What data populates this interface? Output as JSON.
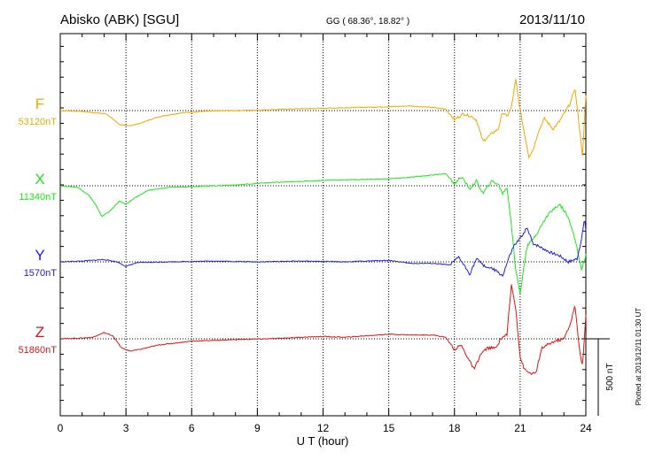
{
  "header": {
    "station": "Abisko (ABK)  [SGU]",
    "coords": "GG ( 68.36°,  18.82° )",
    "date": "2013/11/10"
  },
  "plotted_note": "Plotted at 2013/12/11 01:30 UT",
  "chart_data": {
    "type": "line",
    "title": "Abisko (ABK)  [SGU]",
    "xlabel": "U T (hour)",
    "ylabel": "",
    "xlim": [
      0,
      24
    ],
    "x_ticks": [
      0,
      3,
      6,
      9,
      12,
      15,
      18,
      21,
      24
    ],
    "x_tick_labels": [
      "0",
      "3",
      "6",
      "9",
      "12",
      "15",
      "18",
      "21",
      "24"
    ],
    "scale_bar_nT": 500,
    "scale_label": "500 nT",
    "grid": true,
    "series": [
      {
        "name": "F",
        "baseline_label": "53120nT",
        "baseline_nT": 53120,
        "color": "#f0a800",
        "points": [
          [
            0,
            0
          ],
          [
            1,
            -5
          ],
          [
            1.6,
            -15
          ],
          [
            2.1,
            -20
          ],
          [
            2.7,
            -90
          ],
          [
            3.1,
            -100
          ],
          [
            3.6,
            -85
          ],
          [
            4.5,
            -40
          ],
          [
            5.5,
            -15
          ],
          [
            6.5,
            -5
          ],
          [
            8,
            0
          ],
          [
            9.5,
            5
          ],
          [
            10.5,
            10
          ],
          [
            12,
            15
          ],
          [
            13.5,
            20
          ],
          [
            15,
            25
          ],
          [
            16,
            30
          ],
          [
            17,
            20
          ],
          [
            17.6,
            10
          ],
          [
            18,
            -60
          ],
          [
            18.4,
            -20
          ],
          [
            18.8,
            -40
          ],
          [
            19,
            -60
          ],
          [
            19.3,
            -200
          ],
          [
            19.7,
            -150
          ],
          [
            20,
            -120
          ],
          [
            20.2,
            -10
          ],
          [
            20.4,
            -40
          ],
          [
            20.6,
            20
          ],
          [
            20.8,
            200
          ],
          [
            21,
            0
          ],
          [
            21.2,
            -150
          ],
          [
            21.4,
            -300
          ],
          [
            21.6,
            -250
          ],
          [
            21.8,
            -150
          ],
          [
            22.1,
            -50
          ],
          [
            22.5,
            -120
          ],
          [
            22.8,
            -70
          ],
          [
            23,
            -20
          ],
          [
            23.3,
            50
          ],
          [
            23.5,
            150
          ],
          [
            23.7,
            -100
          ],
          [
            23.85,
            -300
          ],
          [
            24,
            100
          ]
        ]
      },
      {
        "name": "X",
        "baseline_label": "11340nT",
        "baseline_nT": 11340,
        "color": "#1ee61e",
        "points": [
          [
            0,
            0
          ],
          [
            0.8,
            -10
          ],
          [
            1.3,
            -60
          ],
          [
            1.6,
            -120
          ],
          [
            1.9,
            -200
          ],
          [
            2.3,
            -160
          ],
          [
            2.7,
            -100
          ],
          [
            3,
            -120
          ],
          [
            3.4,
            -80
          ],
          [
            4,
            -30
          ],
          [
            5,
            -10
          ],
          [
            6,
            -5
          ],
          [
            8,
            5
          ],
          [
            9.5,
            20
          ],
          [
            10.5,
            25
          ],
          [
            12,
            35
          ],
          [
            13.5,
            40
          ],
          [
            15,
            45
          ],
          [
            16,
            55
          ],
          [
            17,
            70
          ],
          [
            17.6,
            80
          ],
          [
            18,
            10
          ],
          [
            18.3,
            60
          ],
          [
            18.7,
            -20
          ],
          [
            19,
            30
          ],
          [
            19.3,
            -50
          ],
          [
            19.7,
            30
          ],
          [
            20,
            10
          ],
          [
            20.2,
            -50
          ],
          [
            20.4,
            -10
          ],
          [
            20.6,
            -250
          ],
          [
            20.8,
            -550
          ],
          [
            21,
            -700
          ],
          [
            21.3,
            -400
          ],
          [
            21.8,
            -300
          ],
          [
            22.3,
            -180
          ],
          [
            22.8,
            -120
          ],
          [
            23.2,
            -200
          ],
          [
            23.6,
            -400
          ],
          [
            23.8,
            -550
          ],
          [
            24,
            -450
          ]
        ]
      },
      {
        "name": "Y",
        "baseline_label": "1570nT",
        "baseline_nT": 1570,
        "color": "#2020d8",
        "points": [
          [
            0,
            0
          ],
          [
            1,
            5
          ],
          [
            2,
            15
          ],
          [
            2.6,
            0
          ],
          [
            3,
            -30
          ],
          [
            3.5,
            -5
          ],
          [
            5,
            0
          ],
          [
            7,
            5
          ],
          [
            9,
            0
          ],
          [
            11,
            5
          ],
          [
            13,
            0
          ],
          [
            15,
            10
          ],
          [
            16,
            -10
          ],
          [
            17,
            -10
          ],
          [
            17.8,
            -20
          ],
          [
            18.2,
            30
          ],
          [
            18.7,
            -80
          ],
          [
            19,
            20
          ],
          [
            19.4,
            -30
          ],
          [
            19.8,
            -50
          ],
          [
            20.2,
            -90
          ],
          [
            20.5,
            30
          ],
          [
            20.7,
            100
          ],
          [
            21,
            150
          ],
          [
            21.3,
            220
          ],
          [
            21.6,
            120
          ],
          [
            22,
            90
          ],
          [
            22.4,
            60
          ],
          [
            22.8,
            40
          ],
          [
            23.2,
            0
          ],
          [
            23.6,
            20
          ],
          [
            23.8,
            150
          ],
          [
            23.95,
            280
          ],
          [
            24,
            200
          ]
        ]
      },
      {
        "name": "Z",
        "baseline_label": "51860nT",
        "baseline_nT": 51860,
        "color": "#e01414",
        "points": [
          [
            0,
            0
          ],
          [
            1,
            5
          ],
          [
            1.5,
            10
          ],
          [
            2,
            40
          ],
          [
            2.4,
            20
          ],
          [
            2.8,
            -60
          ],
          [
            3.2,
            -80
          ],
          [
            3.6,
            -70
          ],
          [
            4.5,
            -40
          ],
          [
            6,
            -15
          ],
          [
            8,
            -5
          ],
          [
            9.5,
            0
          ],
          [
            11,
            10
          ],
          [
            12,
            15
          ],
          [
            13,
            10
          ],
          [
            14,
            20
          ],
          [
            15,
            30
          ],
          [
            16,
            25
          ],
          [
            17,
            25
          ],
          [
            17.6,
            10
          ],
          [
            18,
            -70
          ],
          [
            18.3,
            -40
          ],
          [
            18.6,
            -120
          ],
          [
            18.9,
            -200
          ],
          [
            19.2,
            -100
          ],
          [
            19.5,
            -60
          ],
          [
            19.9,
            -60
          ],
          [
            20.1,
            0
          ],
          [
            20.4,
            30
          ],
          [
            20.6,
            350
          ],
          [
            20.8,
            200
          ],
          [
            21,
            -120
          ],
          [
            21.2,
            -200
          ],
          [
            21.4,
            -220
          ],
          [
            21.7,
            -230
          ],
          [
            22,
            -60
          ],
          [
            22.5,
            -20
          ],
          [
            23,
            0
          ],
          [
            23.3,
            100
          ],
          [
            23.5,
            220
          ],
          [
            23.7,
            -60
          ],
          [
            23.85,
            -180
          ],
          [
            24,
            150
          ]
        ]
      }
    ]
  }
}
